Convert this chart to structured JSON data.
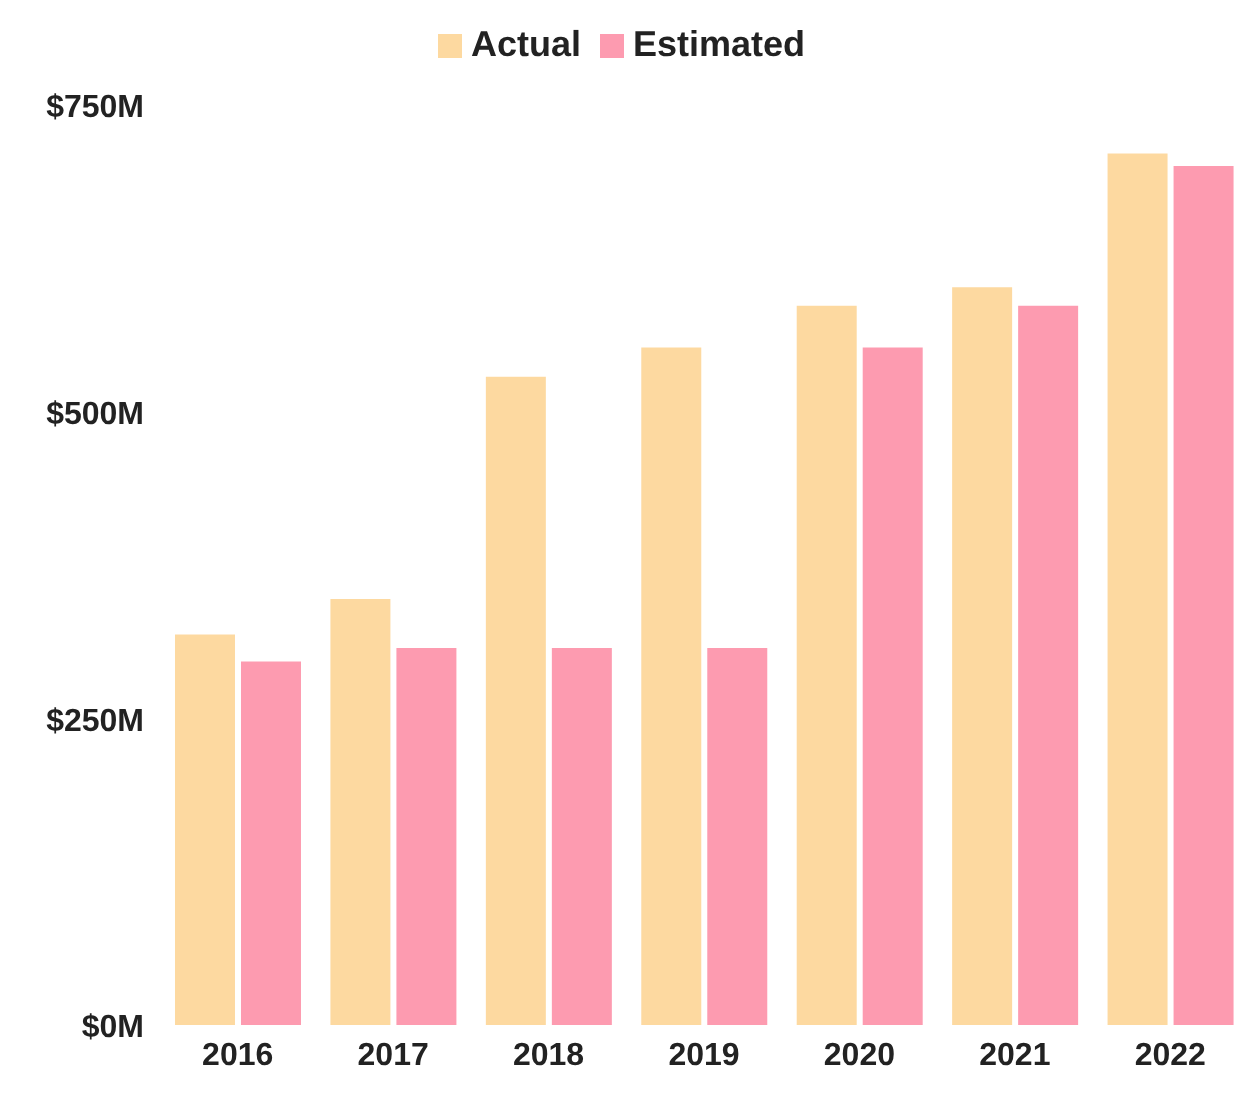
{
  "chart_data": {
    "type": "bar",
    "categories": [
      "2016",
      "2017",
      "2018",
      "2019",
      "2020",
      "2021",
      "2022"
    ],
    "series": [
      {
        "name": "Actual",
        "color": "#fdd9a0",
        "values": [
          320,
          349,
          530,
          554,
          588,
          603,
          712
        ]
      },
      {
        "name": "Estimated",
        "color": "#fd9bb0",
        "values": [
          298,
          309,
          309,
          309,
          554,
          588,
          702
        ]
      }
    ],
    "ylim": [
      0,
      750
    ],
    "yticks": [
      {
        "value": 0,
        "label": "$0M"
      },
      {
        "value": 250,
        "label": "$250M"
      },
      {
        "value": 500,
        "label": "$500M"
      },
      {
        "value": 750,
        "label": "$750M"
      }
    ],
    "grid": false,
    "legend": "top"
  }
}
